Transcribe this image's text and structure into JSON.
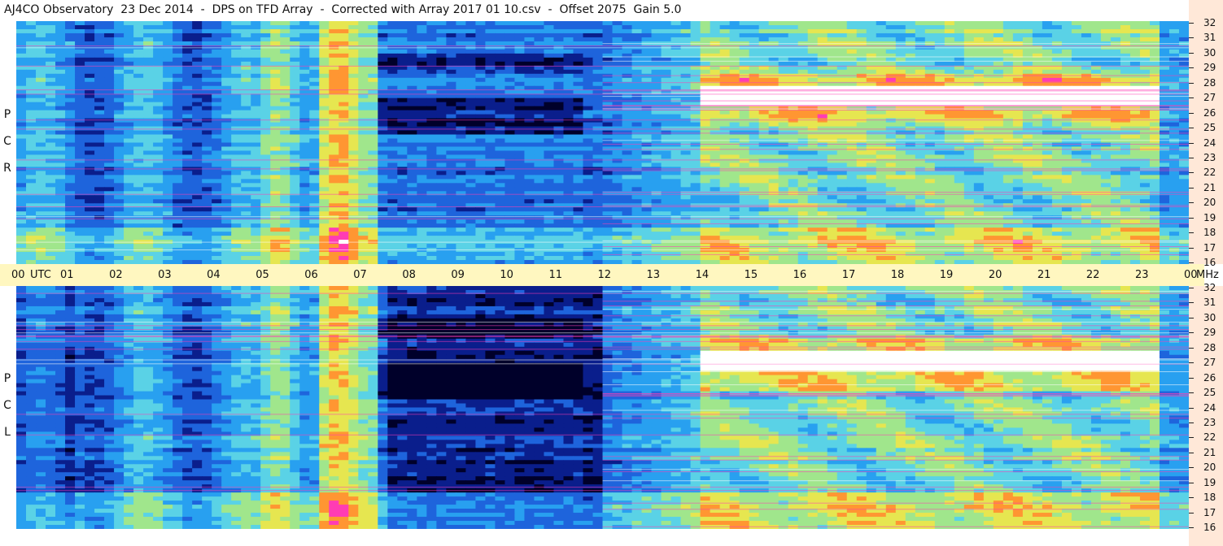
{
  "title": "AJ4CO Observatory  23 Dec 2014  -  DPS on TFD Array  -  Corrected with Array 2017 01 10.csv  -  Offset 2075  Gain 5.0",
  "chart_data": {
    "type": "heatmap",
    "x_unit": "UTC",
    "y_unit": "MHz",
    "x_ticks": [
      "00",
      "01",
      "02",
      "03",
      "04",
      "05",
      "06",
      "07",
      "08",
      "09",
      "10",
      "11",
      "12",
      "13",
      "14",
      "15",
      "16",
      "17",
      "18",
      "19",
      "20",
      "21",
      "22",
      "23",
      "00"
    ],
    "xlim": [
      0,
      24
    ],
    "ylim": [
      16,
      32
    ],
    "y_ticks": [
      32,
      31,
      30,
      29,
      28,
      27,
      26,
      25,
      24,
      23,
      22,
      21,
      20,
      19,
      18,
      17,
      16
    ],
    "panels": [
      {
        "name": "RCP",
        "letters": [
          "P",
          "C",
          "R"
        ]
      },
      {
        "name": "LCP",
        "letters": [
          "P",
          "C",
          "L"
        ]
      }
    ],
    "colorscale": [
      "#00002a",
      "#0a1e8c",
      "#1e64dc",
      "#28a0f0",
      "#5ad2e6",
      "#a0e68c",
      "#e6e650",
      "#ff9632",
      "#ff3cb4",
      "#ffffff"
    ]
  },
  "labels": {
    "utc": "UTC",
    "mhz": "MHz"
  }
}
